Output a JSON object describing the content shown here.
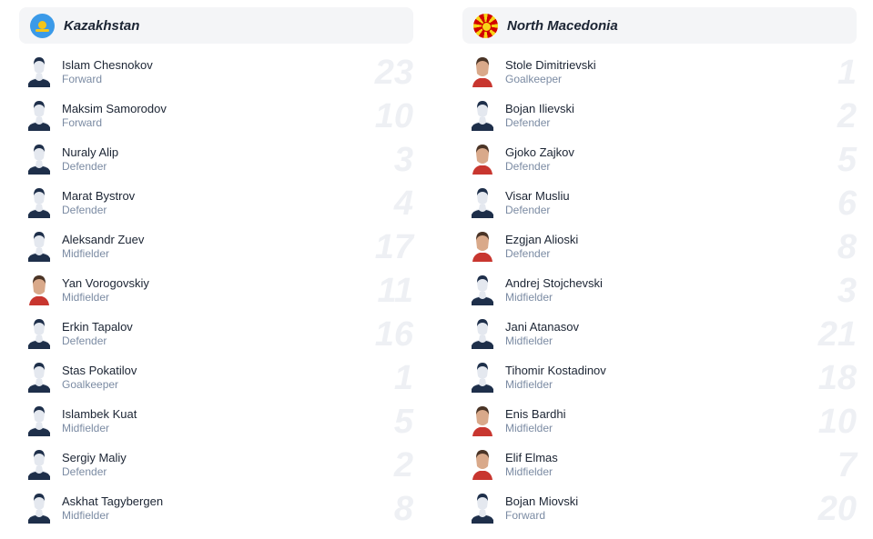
{
  "teams": [
    {
      "name": "Kazakhstan",
      "flag": "kazakhstan-flag",
      "players": [
        {
          "name": "Islam Chesnokov",
          "position": "Forward",
          "number": "23",
          "avatar": "silhouette"
        },
        {
          "name": "Maksim Samorodov",
          "position": "Forward",
          "number": "10",
          "avatar": "silhouette"
        },
        {
          "name": "Nuraly Alip",
          "position": "Defender",
          "number": "3",
          "avatar": "silhouette"
        },
        {
          "name": "Marat Bystrov",
          "position": "Defender",
          "number": "4",
          "avatar": "silhouette"
        },
        {
          "name": "Aleksandr Zuev",
          "position": "Midfielder",
          "number": "17",
          "avatar": "silhouette"
        },
        {
          "name": "Yan Vorogovskiy",
          "position": "Midfielder",
          "number": "11",
          "avatar": "photo"
        },
        {
          "name": "Erkin Tapalov",
          "position": "Defender",
          "number": "16",
          "avatar": "silhouette"
        },
        {
          "name": "Stas Pokatilov",
          "position": "Goalkeeper",
          "number": "1",
          "avatar": "silhouette"
        },
        {
          "name": "Islambek Kuat",
          "position": "Midfielder",
          "number": "5",
          "avatar": "silhouette"
        },
        {
          "name": "Sergiy Maliy",
          "position": "Defender",
          "number": "2",
          "avatar": "silhouette"
        },
        {
          "name": "Askhat Tagybergen",
          "position": "Midfielder",
          "number": "8",
          "avatar": "silhouette"
        }
      ]
    },
    {
      "name": "North Macedonia",
      "flag": "north-macedonia-flag",
      "players": [
        {
          "name": "Stole Dimitrievski",
          "position": "Goalkeeper",
          "number": "1",
          "avatar": "photo"
        },
        {
          "name": "Bojan Ilievski",
          "position": "Defender",
          "number": "2",
          "avatar": "silhouette"
        },
        {
          "name": "Gjoko Zajkov",
          "position": "Defender",
          "number": "5",
          "avatar": "photo"
        },
        {
          "name": "Visar Musliu",
          "position": "Defender",
          "number": "6",
          "avatar": "silhouette"
        },
        {
          "name": "Ezgjan Alioski",
          "position": "Defender",
          "number": "8",
          "avatar": "photo"
        },
        {
          "name": "Andrej Stojchevski",
          "position": "Midfielder",
          "number": "3",
          "avatar": "silhouette"
        },
        {
          "name": "Jani Atanasov",
          "position": "Midfielder",
          "number": "21",
          "avatar": "silhouette"
        },
        {
          "name": "Tihomir Kostadinov",
          "position": "Midfielder",
          "number": "18",
          "avatar": "silhouette"
        },
        {
          "name": "Enis Bardhi",
          "position": "Midfielder",
          "number": "10",
          "avatar": "photo"
        },
        {
          "name": "Elif Elmas",
          "position": "Midfielder",
          "number": "7",
          "avatar": "photo"
        },
        {
          "name": "Bojan Miovski",
          "position": "Forward",
          "number": "20",
          "avatar": "silhouette"
        }
      ]
    }
  ]
}
